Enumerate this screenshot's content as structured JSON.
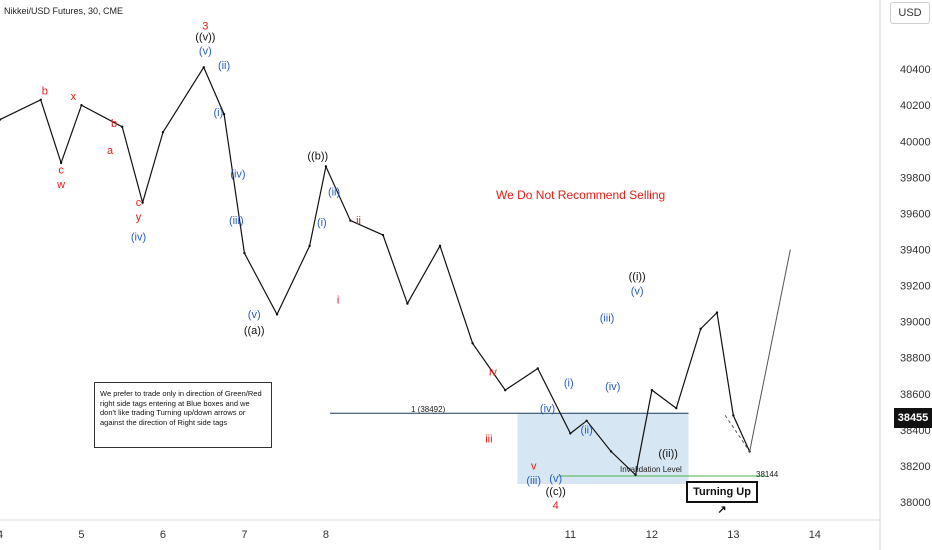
{
  "header": {
    "title": "Nikkei/USD Futures, 30, CME",
    "currency": "USD"
  },
  "note": {
    "text": "We prefer to trade only in direction of Green/Red right side tags entering at Blue boxes and we don't like trading Turning up/down arrows or against the direction of Right side tags"
  },
  "warning": {
    "text": "We Do Not Recommend Selling",
    "color": "#e0201b"
  },
  "price_tag": {
    "value": "38455"
  },
  "turning_up": {
    "label": "Turning Up",
    "arrow": "↗"
  },
  "fib_label": "1 (38492)",
  "invalidation": {
    "label": "Invalidation Level",
    "value": "38144"
  },
  "colors": {
    "red": "#e0201b",
    "blue": "#2a5cc0",
    "black": "#111111",
    "box": "#cfe3f1",
    "green": "#4caf50"
  },
  "chart_data": {
    "type": "line",
    "x": [
      4,
      4.5,
      4.75,
      5,
      5.5,
      5.75,
      6,
      6.5,
      6.75,
      7,
      7.4,
      7.8,
      8,
      8.3,
      8.7,
      9,
      9.4,
      9.8,
      10.2,
      10.6,
      11,
      11.2,
      11.5,
      11.8,
      12,
      12.3,
      12.6,
      12.8,
      13,
      13.2
    ],
    "y": [
      40120,
      40230,
      39880,
      40200,
      40080,
      39660,
      40050,
      40410,
      40150,
      39380,
      39040,
      39420,
      39860,
      39560,
      39480,
      39100,
      39420,
      38880,
      38620,
      38740,
      38380,
      38450,
      38280,
      38150,
      38620,
      38520,
      38960,
      39050,
      38480,
      38280
    ],
    "projection": {
      "x": [
        13.2,
        13.7
      ],
      "y": [
        38280,
        39400
      ]
    },
    "xticks": [
      "4",
      "5",
      "6",
      "7",
      "8",
      "11",
      "12",
      "13",
      "14"
    ],
    "xtick_positions": [
      4,
      5,
      6,
      7,
      8,
      11,
      12,
      13,
      14
    ],
    "yticks": [
      "40400",
      "40200",
      "40000",
      "39800",
      "39600",
      "39400",
      "39200",
      "39000",
      "38800",
      "38600",
      "38400",
      "38200",
      "38000"
    ],
    "ytick_values": [
      40400,
      40200,
      40000,
      39800,
      39600,
      39400,
      39200,
      39000,
      38800,
      38600,
      38400,
      38200,
      38000
    ],
    "xlim": [
      4,
      14.8
    ],
    "ylim": [
      37900,
      40700
    ],
    "grid": false,
    "fib_level": 38492,
    "invalidation_level": 38144,
    "box": {
      "x": [
        10.35,
        12.45
      ],
      "y": [
        38100,
        38492
      ]
    },
    "labels": [
      {
        "text": "b",
        "x": 4.55,
        "y": 40260,
        "color": "red"
      },
      {
        "text": "c",
        "x": 4.75,
        "y": 39820,
        "color": "red"
      },
      {
        "text": "w",
        "x": 4.75,
        "y": 39740,
        "color": "red"
      },
      {
        "text": "x",
        "x": 4.9,
        "y": 40230,
        "color": "red"
      },
      {
        "text": "b",
        "x": 5.4,
        "y": 40080,
        "color": "red"
      },
      {
        "text": "a",
        "x": 5.35,
        "y": 39930,
        "color": "red"
      },
      {
        "text": "c",
        "x": 5.7,
        "y": 39640,
        "color": "red"
      },
      {
        "text": "y",
        "x": 5.7,
        "y": 39560,
        "color": "red"
      },
      {
        "text": "(iv)",
        "x": 5.7,
        "y": 39450,
        "color": "blue"
      },
      {
        "text": "3",
        "x": 6.52,
        "y": 40620,
        "color": "red"
      },
      {
        "text": "((v))",
        "x": 6.52,
        "y": 40560,
        "color": "black"
      },
      {
        "text": "(v)",
        "x": 6.52,
        "y": 40480,
        "color": "blue"
      },
      {
        "text": "(ii)",
        "x": 6.75,
        "y": 40400,
        "color": "blue"
      },
      {
        "text": "(i)",
        "x": 6.68,
        "y": 40140,
        "color": "blue"
      },
      {
        "text": "(iv)",
        "x": 6.92,
        "y": 39800,
        "color": "blue"
      },
      {
        "text": "(iii)",
        "x": 6.9,
        "y": 39540,
        "color": "blue"
      },
      {
        "text": "(v)",
        "x": 7.12,
        "y": 39020,
        "color": "blue"
      },
      {
        "text": "((a))",
        "x": 7.12,
        "y": 38930,
        "color": "black"
      },
      {
        "text": "((b))",
        "x": 7.9,
        "y": 39900,
        "color": "black"
      },
      {
        "text": "(ii)",
        "x": 8.1,
        "y": 39700,
        "color": "blue"
      },
      {
        "text": "(i)",
        "x": 7.95,
        "y": 39530,
        "color": "blue"
      },
      {
        "text": "ii",
        "x": 8.4,
        "y": 39540,
        "color": "red"
      },
      {
        "text": "i",
        "x": 8.15,
        "y": 39100,
        "color": "red"
      },
      {
        "text": "iv",
        "x": 10.05,
        "y": 38700,
        "color": "red"
      },
      {
        "text": "iii",
        "x": 10.0,
        "y": 38330,
        "color": "red"
      },
      {
        "text": "v",
        "x": 10.55,
        "y": 38180,
        "color": "red"
      },
      {
        "text": "(iii)",
        "x": 10.55,
        "y": 38100,
        "color": "blue"
      },
      {
        "text": "(iv)",
        "x": 10.72,
        "y": 38500,
        "color": "blue"
      },
      {
        "text": "(v)",
        "x": 10.82,
        "y": 38110,
        "color": "blue"
      },
      {
        "text": "((c))",
        "x": 10.82,
        "y": 38040,
        "color": "black"
      },
      {
        "text": "4",
        "x": 10.82,
        "y": 37960,
        "color": "red"
      },
      {
        "text": "(i)",
        "x": 10.98,
        "y": 38640,
        "color": "blue"
      },
      {
        "text": "(ii)",
        "x": 11.2,
        "y": 38380,
        "color": "blue"
      },
      {
        "text": "(iii)",
        "x": 11.45,
        "y": 39000,
        "color": "blue"
      },
      {
        "text": "(iv)",
        "x": 11.52,
        "y": 38620,
        "color": "blue"
      },
      {
        "text": "((i))",
        "x": 11.82,
        "y": 39230,
        "color": "black"
      },
      {
        "text": "(v)",
        "x": 11.82,
        "y": 39150,
        "color": "blue"
      },
      {
        "text": "((ii))",
        "x": 12.2,
        "y": 38250,
        "color": "black"
      }
    ]
  }
}
